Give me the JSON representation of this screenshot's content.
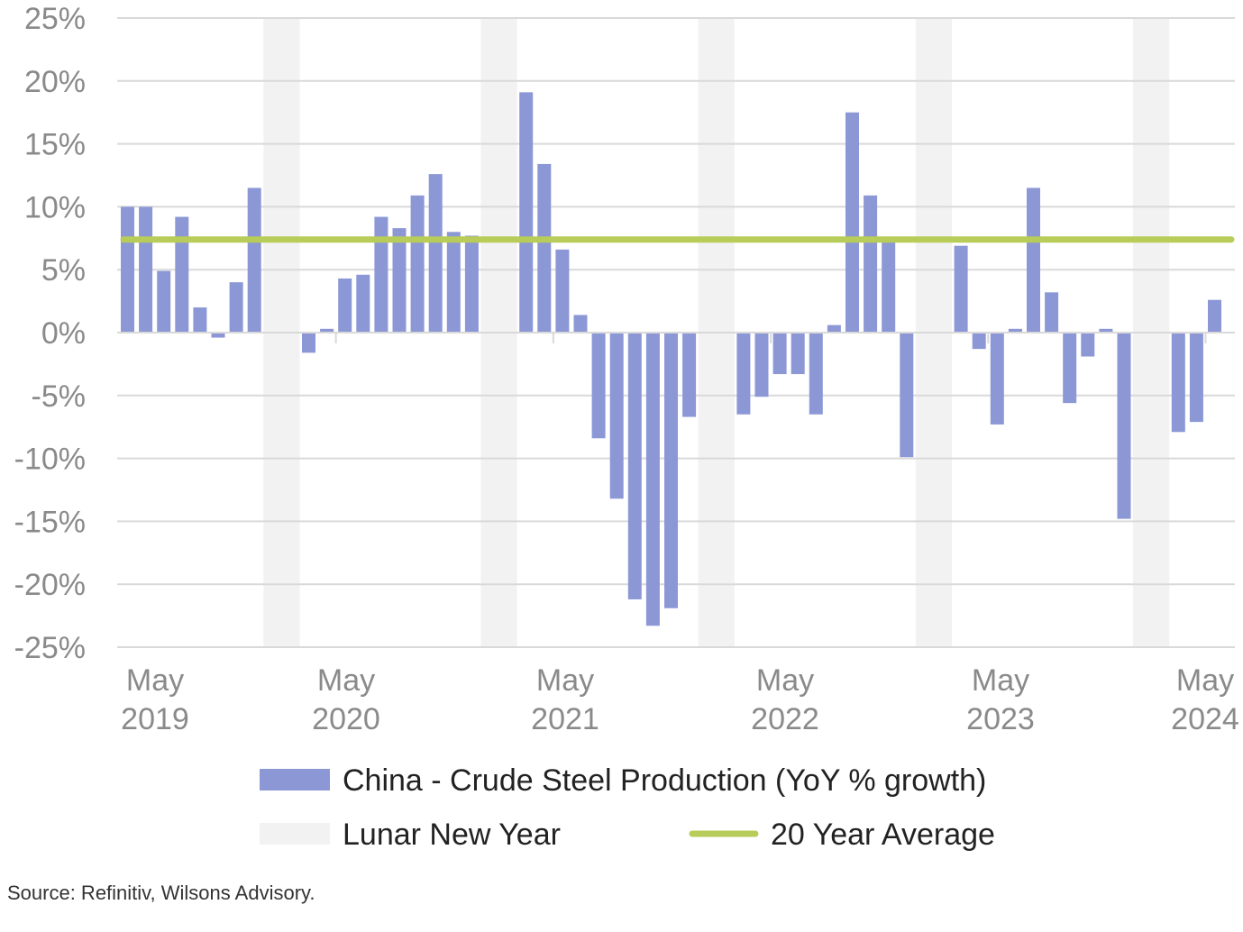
{
  "chart_data": {
    "type": "bar",
    "x_start": "2019-05",
    "categories": [
      "May 2019",
      "Jun 2019",
      "Jul 2019",
      "Aug 2019",
      "Sep 2019",
      "Oct 2019",
      "Nov 2019",
      "Dec 2019",
      "Jan 2020",
      "Feb 2020",
      "Mar 2020",
      "Apr 2020",
      "May 2020",
      "Jun 2020",
      "Jul 2020",
      "Aug 2020",
      "Sep 2020",
      "Oct 2020",
      "Nov 2020",
      "Dec 2020",
      "Jan 2021",
      "Feb 2021",
      "Mar 2021",
      "Apr 2021",
      "May 2021",
      "Jun 2021",
      "Jul 2021",
      "Aug 2021",
      "Sep 2021",
      "Oct 2021",
      "Nov 2021",
      "Dec 2021",
      "Jan 2022",
      "Feb 2022",
      "Mar 2022",
      "Apr 2022",
      "May 2022",
      "Jun 2022",
      "Jul 2022",
      "Aug 2022",
      "Sep 2022",
      "Oct 2022",
      "Nov 2022",
      "Dec 2022",
      "Jan 2023",
      "Feb 2023",
      "Mar 2023",
      "Apr 2023",
      "May 2023",
      "Jun 2023",
      "Jul 2023",
      "Aug 2023",
      "Sep 2023",
      "Oct 2023",
      "Nov 2023",
      "Dec 2023",
      "Jan 2024",
      "Feb 2024",
      "Mar 2024",
      "Apr 2024",
      "May 2024",
      "Jun 2024",
      "Jul 2024",
      "Aug 2024"
    ],
    "series": [
      {
        "name": "China - Crude Steel Production (YoY % growth)",
        "color": "#8c97d6",
        "values": [
          10.0,
          10.0,
          4.9,
          9.2,
          2.0,
          -0.4,
          4.0,
          11.5,
          null,
          null,
          -1.6,
          0.3,
          4.3,
          4.6,
          9.2,
          8.3,
          10.9,
          12.6,
          8.0,
          7.7,
          null,
          null,
          19.1,
          13.4,
          6.6,
          1.4,
          -8.4,
          -13.2,
          -21.2,
          -23.3,
          -21.9,
          -6.7,
          null,
          null,
          -6.5,
          -5.1,
          -3.3,
          -3.3,
          -6.5,
          0.6,
          17.5,
          10.9,
          7.5,
          -9.9,
          null,
          null,
          6.9,
          -1.3,
          -7.3,
          0.3,
          11.5,
          3.2,
          -5.6,
          -1.9,
          0.3,
          -14.8,
          null,
          null,
          -7.9,
          -7.1,
          2.6,
          null,
          null,
          null
        ]
      }
    ],
    "shaded_periods": {
      "name": "Lunar New Year",
      "color": "#f2f2f2",
      "periods": [
        [
          "Jan 2020",
          "Feb 2020"
        ],
        [
          "Jan 2021",
          "Feb 2021"
        ],
        [
          "Jan 2022",
          "Feb 2022"
        ],
        [
          "Jan 2023",
          "Feb 2023"
        ],
        [
          "Jan 2024",
          "Feb 2024"
        ]
      ]
    },
    "reference_line": {
      "name": "20 Year Average",
      "value": 7.4,
      "color": "#b8cc5a"
    },
    "ylim": [
      -25,
      25
    ],
    "yticks": [
      25,
      20,
      15,
      10,
      5,
      0,
      -5,
      -10,
      -15,
      -20,
      -25
    ],
    "ytick_labels": [
      "25%",
      "20%",
      "15%",
      "10%",
      "5%",
      "0%",
      "-5%",
      "-10%",
      "-15%",
      "-20%",
      "-25%"
    ],
    "xtick_labels": [
      {
        "line1": "May",
        "line2": "2019"
      },
      {
        "line1": "May",
        "line2": "2020"
      },
      {
        "line1": "May",
        "line2": "2021"
      },
      {
        "line1": "May",
        "line2": "2022"
      },
      {
        "line1": "May",
        "line2": "2023"
      },
      {
        "line1": "May",
        "line2": "2024"
      }
    ],
    "grid": true,
    "legend": "bottom",
    "title": "",
    "xlabel": "",
    "ylabel": ""
  },
  "source_text": "Source: Refinitiv, Wilsons Advisory."
}
